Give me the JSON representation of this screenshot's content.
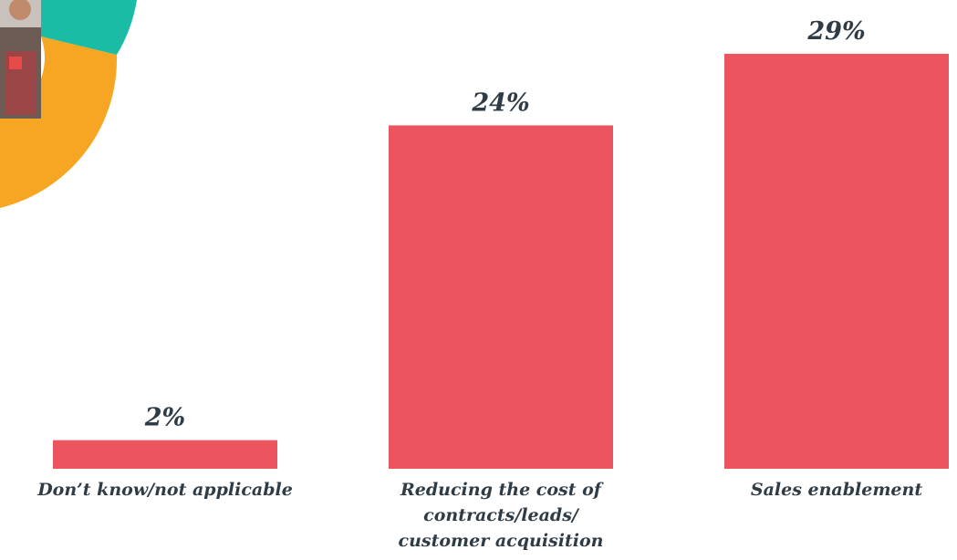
{
  "chart_data": {
    "type": "bar",
    "categories": [
      [
        "Don’t know/not applicable"
      ],
      [
        "Reducing the cost of",
        "contracts/leads/",
        "customer acquisition"
      ],
      [
        "Sales enablement"
      ]
    ],
    "values": [
      2,
      24,
      29
    ],
    "value_labels": [
      "2%",
      "24%",
      "29%"
    ],
    "unit": "%",
    "title": "",
    "xlabel": "",
    "ylabel": "",
    "ylim": [
      0,
      29
    ],
    "grid": false,
    "legend": "none"
  },
  "colors": {
    "bar": "#ec5560",
    "text": "#2f3b45",
    "decor_teal": "#1bbca6",
    "decor_orange": "#f6a623"
  },
  "decor": {
    "top_left": "partial-donut-with-photo"
  }
}
